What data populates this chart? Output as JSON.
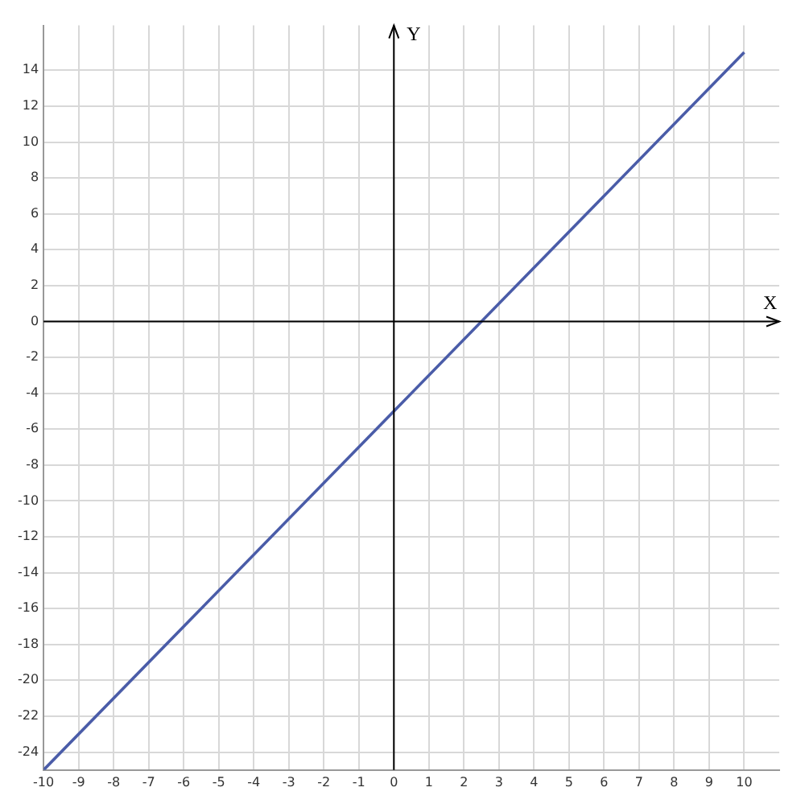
{
  "chart_data": {
    "type": "line",
    "xlabel": "X",
    "ylabel": "Y",
    "x": [
      -10,
      10
    ],
    "series": [
      {
        "color": "#4a5ca8",
        "values": [
          -25,
          15
        ]
      }
    ],
    "xlim": [
      -10,
      11
    ],
    "ylim": [
      -25,
      16.5
    ],
    "xticks": [
      -10,
      -9,
      -8,
      -7,
      -6,
      -5,
      -4,
      -3,
      -2,
      -1,
      0,
      1,
      2,
      3,
      4,
      5,
      6,
      7,
      8,
      9,
      10
    ],
    "yticks": [
      -24,
      -22,
      -20,
      -18,
      -16,
      -14,
      -12,
      -10,
      -8,
      -6,
      -4,
      -2,
      0,
      2,
      4,
      6,
      8,
      10,
      12,
      14
    ],
    "grid": true,
    "legend": false,
    "marker": "none",
    "line_style": "solid"
  }
}
